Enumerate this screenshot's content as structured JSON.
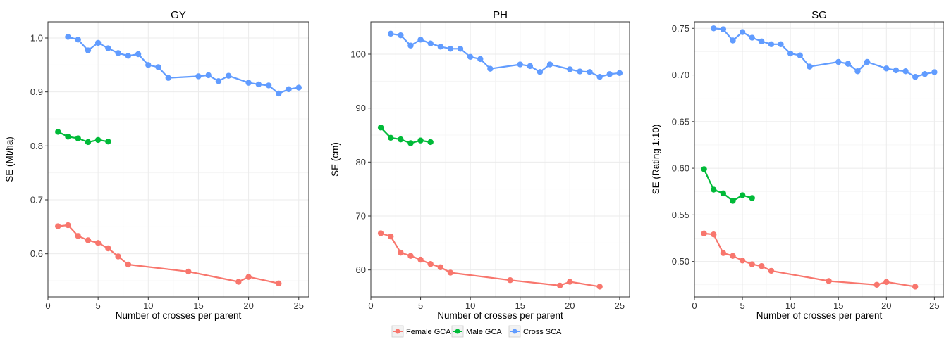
{
  "colors": {
    "female": "#F8766D",
    "male": "#00BA38",
    "cross": "#619CFF",
    "panel_bg": "#ffffff",
    "grid": "#ebebeb",
    "border": "#333333"
  },
  "legend": {
    "placement": "bottom-center",
    "items": [
      {
        "label": "Female GCA",
        "color": "#F8766D"
      },
      {
        "label": "Male GCA",
        "color": "#00BA38"
      },
      {
        "label": "Cross SCA",
        "color": "#619CFF"
      }
    ]
  },
  "chart_data": [
    {
      "type": "line",
      "title": "GY",
      "xlabel": "Number of crosses per parent",
      "ylabel": "SE (Mt/ha)",
      "xlim": [
        0,
        26
      ],
      "ylim": [
        0.52,
        1.03
      ],
      "x_ticks": [
        0,
        5,
        10,
        15,
        20,
        25
      ],
      "y_ticks": [
        0.6,
        0.7,
        0.8,
        0.9,
        1.0
      ],
      "y_tick_labels": [
        "0.6",
        "0.7",
        "0.8",
        "0.9",
        "1.0"
      ],
      "grid": true,
      "series": [
        {
          "name": "Female GCA",
          "color": "#F8766D",
          "x": [
            1,
            2,
            3,
            4,
            5,
            6,
            7,
            8,
            14,
            19,
            20,
            23
          ],
          "y": [
            0.651,
            0.653,
            0.633,
            0.625,
            0.62,
            0.61,
            0.595,
            0.58,
            0.567,
            0.548,
            0.557,
            0.545
          ]
        },
        {
          "name": "Male GCA",
          "color": "#00BA38",
          "x": [
            1,
            2,
            3,
            4,
            5,
            6
          ],
          "y": [
            0.826,
            0.817,
            0.814,
            0.807,
            0.811,
            0.808
          ]
        },
        {
          "name": "Cross SCA",
          "color": "#619CFF",
          "x": [
            2,
            3,
            4,
            5,
            6,
            7,
            8,
            9,
            10,
            11,
            12,
            15,
            16,
            17,
            18,
            20,
            21,
            22,
            23,
            24,
            25
          ],
          "y": [
            1.002,
            0.997,
            0.977,
            0.991,
            0.981,
            0.972,
            0.967,
            0.97,
            0.95,
            0.946,
            0.926,
            0.929,
            0.931,
            0.92,
            0.93,
            0.917,
            0.914,
            0.912,
            0.897,
            0.905,
            0.908
          ]
        }
      ]
    },
    {
      "type": "line",
      "title": "PH",
      "xlabel": "Number of crosses per parent",
      "ylabel": "SE (cm)",
      "xlim": [
        0,
        26
      ],
      "ylim": [
        55,
        106
      ],
      "x_ticks": [
        0,
        5,
        10,
        15,
        20,
        25
      ],
      "y_ticks": [
        60,
        70,
        80,
        90,
        100
      ],
      "y_tick_labels": [
        "60",
        "70",
        "80",
        "90",
        "100"
      ],
      "grid": true,
      "series": [
        {
          "name": "Female GCA",
          "color": "#F8766D",
          "x": [
            1,
            2,
            3,
            4,
            5,
            6,
            7,
            8,
            14,
            19,
            20,
            23
          ],
          "y": [
            66.8,
            66.2,
            63.2,
            62.6,
            61.9,
            61.1,
            60.5,
            59.5,
            58.1,
            57.1,
            57.8,
            56.9
          ]
        },
        {
          "name": "Male GCA",
          "color": "#00BA38",
          "x": [
            1,
            2,
            3,
            4,
            5,
            6
          ],
          "y": [
            86.4,
            84.5,
            84.2,
            83.5,
            84.0,
            83.7
          ]
        },
        {
          "name": "Cross SCA",
          "color": "#619CFF",
          "x": [
            2,
            3,
            4,
            5,
            6,
            7,
            8,
            9,
            10,
            11,
            12,
            15,
            16,
            17,
            18,
            20,
            21,
            22,
            23,
            24,
            25
          ],
          "y": [
            103.8,
            103.5,
            101.6,
            102.7,
            102.0,
            101.4,
            101.0,
            101.0,
            99.5,
            99.1,
            97.3,
            98.1,
            97.8,
            96.7,
            98.1,
            97.2,
            96.8,
            96.7,
            95.8,
            96.3,
            96.5
          ]
        }
      ]
    },
    {
      "type": "line",
      "title": "SG",
      "xlabel": "Number of crosses per parent",
      "ylabel": "SE (Rating 1:10)",
      "xlim": [
        0,
        26
      ],
      "ylim": [
        0.462,
        0.757
      ],
      "x_ticks": [
        0,
        5,
        10,
        15,
        20,
        25
      ],
      "y_ticks": [
        0.5,
        0.55,
        0.6,
        0.65,
        0.7,
        0.75
      ],
      "y_tick_labels": [
        "0.50",
        "0.55",
        "0.60",
        "0.65",
        "0.70",
        "0.75"
      ],
      "grid": true,
      "series": [
        {
          "name": "Female GCA",
          "color": "#F8766D",
          "x": [
            1,
            2,
            3,
            4,
            5,
            6,
            7,
            8,
            14,
            19,
            20,
            23
          ],
          "y": [
            0.53,
            0.529,
            0.509,
            0.506,
            0.501,
            0.497,
            0.495,
            0.49,
            0.479,
            0.475,
            0.478,
            0.473
          ]
        },
        {
          "name": "Male GCA",
          "color": "#00BA38",
          "x": [
            1,
            2,
            3,
            4,
            5,
            6
          ],
          "y": [
            0.599,
            0.577,
            0.573,
            0.565,
            0.571,
            0.568
          ]
        },
        {
          "name": "Cross SCA",
          "color": "#619CFF",
          "x": [
            2,
            3,
            4,
            5,
            6,
            7,
            8,
            9,
            10,
            11,
            12,
            15,
            16,
            17,
            18,
            20,
            21,
            22,
            23,
            24,
            25
          ],
          "y": [
            0.75,
            0.749,
            0.737,
            0.746,
            0.74,
            0.736,
            0.733,
            0.733,
            0.723,
            0.721,
            0.709,
            0.714,
            0.712,
            0.704,
            0.714,
            0.707,
            0.705,
            0.704,
            0.698,
            0.701,
            0.703
          ]
        }
      ]
    }
  ]
}
